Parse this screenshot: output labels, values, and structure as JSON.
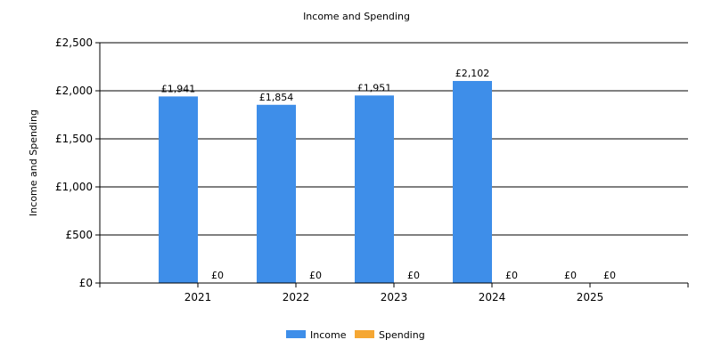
{
  "chart_data": {
    "type": "bar",
    "title": "Income and Spending",
    "ylabel": "Income and Spending",
    "categories": [
      "2021",
      "2022",
      "2023",
      "2024",
      "2025"
    ],
    "series": [
      {
        "name": "Income",
        "color": "#3e8ee9",
        "values": [
          1941,
          1854,
          1951,
          2102,
          0
        ],
        "labels": [
          "£1,941",
          "£1,854",
          "£1,951",
          "£2,102",
          "£0"
        ]
      },
      {
        "name": "Spending",
        "color": "#f5a733",
        "values": [
          0,
          0,
          0,
          0,
          0
        ],
        "labels": [
          "£0",
          "£0",
          "£0",
          "£0",
          "£0"
        ]
      }
    ],
    "ylim": [
      0,
      2500
    ],
    "yticks": [
      0,
      500,
      1000,
      1500,
      2000,
      2500
    ],
    "ytick_labels": [
      "£0",
      "£500",
      "£1,000",
      "£1,500",
      "£2,000",
      "£2,500"
    ],
    "grid": true,
    "legend": "bottom"
  }
}
